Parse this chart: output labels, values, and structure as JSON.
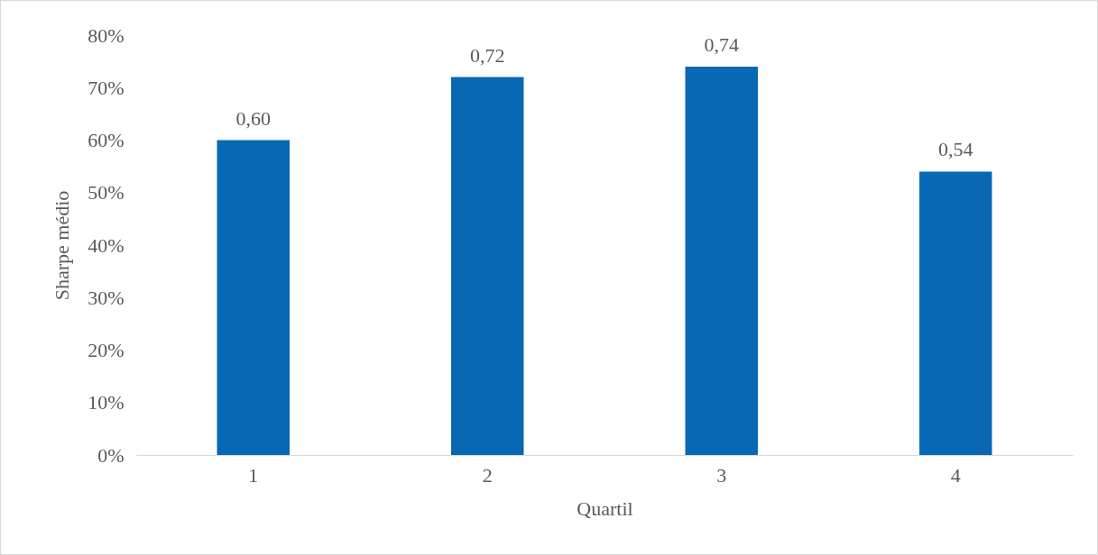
{
  "chart_data": {
    "type": "bar",
    "xlabel": "Quartil",
    "ylabel": "Sharpe médio",
    "categories": [
      "1",
      "2",
      "3",
      "4"
    ],
    "values": [
      0.6,
      0.72,
      0.74,
      0.54
    ],
    "value_labels": [
      "0,60",
      "0,72",
      "0,74",
      "0,54"
    ],
    "color": "#0868b3",
    "ylim": [
      0,
      0.8
    ],
    "yticks": [
      {
        "value": 0,
        "label": "0%"
      },
      {
        "value": 0.1,
        "label": "10%"
      },
      {
        "value": 0.2,
        "label": "20%"
      },
      {
        "value": 0.3,
        "label": "30%"
      },
      {
        "value": 0.4,
        "label": "40%"
      },
      {
        "value": 0.5,
        "label": "50%"
      },
      {
        "value": 0.6,
        "label": "60%"
      },
      {
        "value": 0.7,
        "label": "70%"
      },
      {
        "value": 0.8,
        "label": "80%"
      }
    ],
    "grid": false
  }
}
